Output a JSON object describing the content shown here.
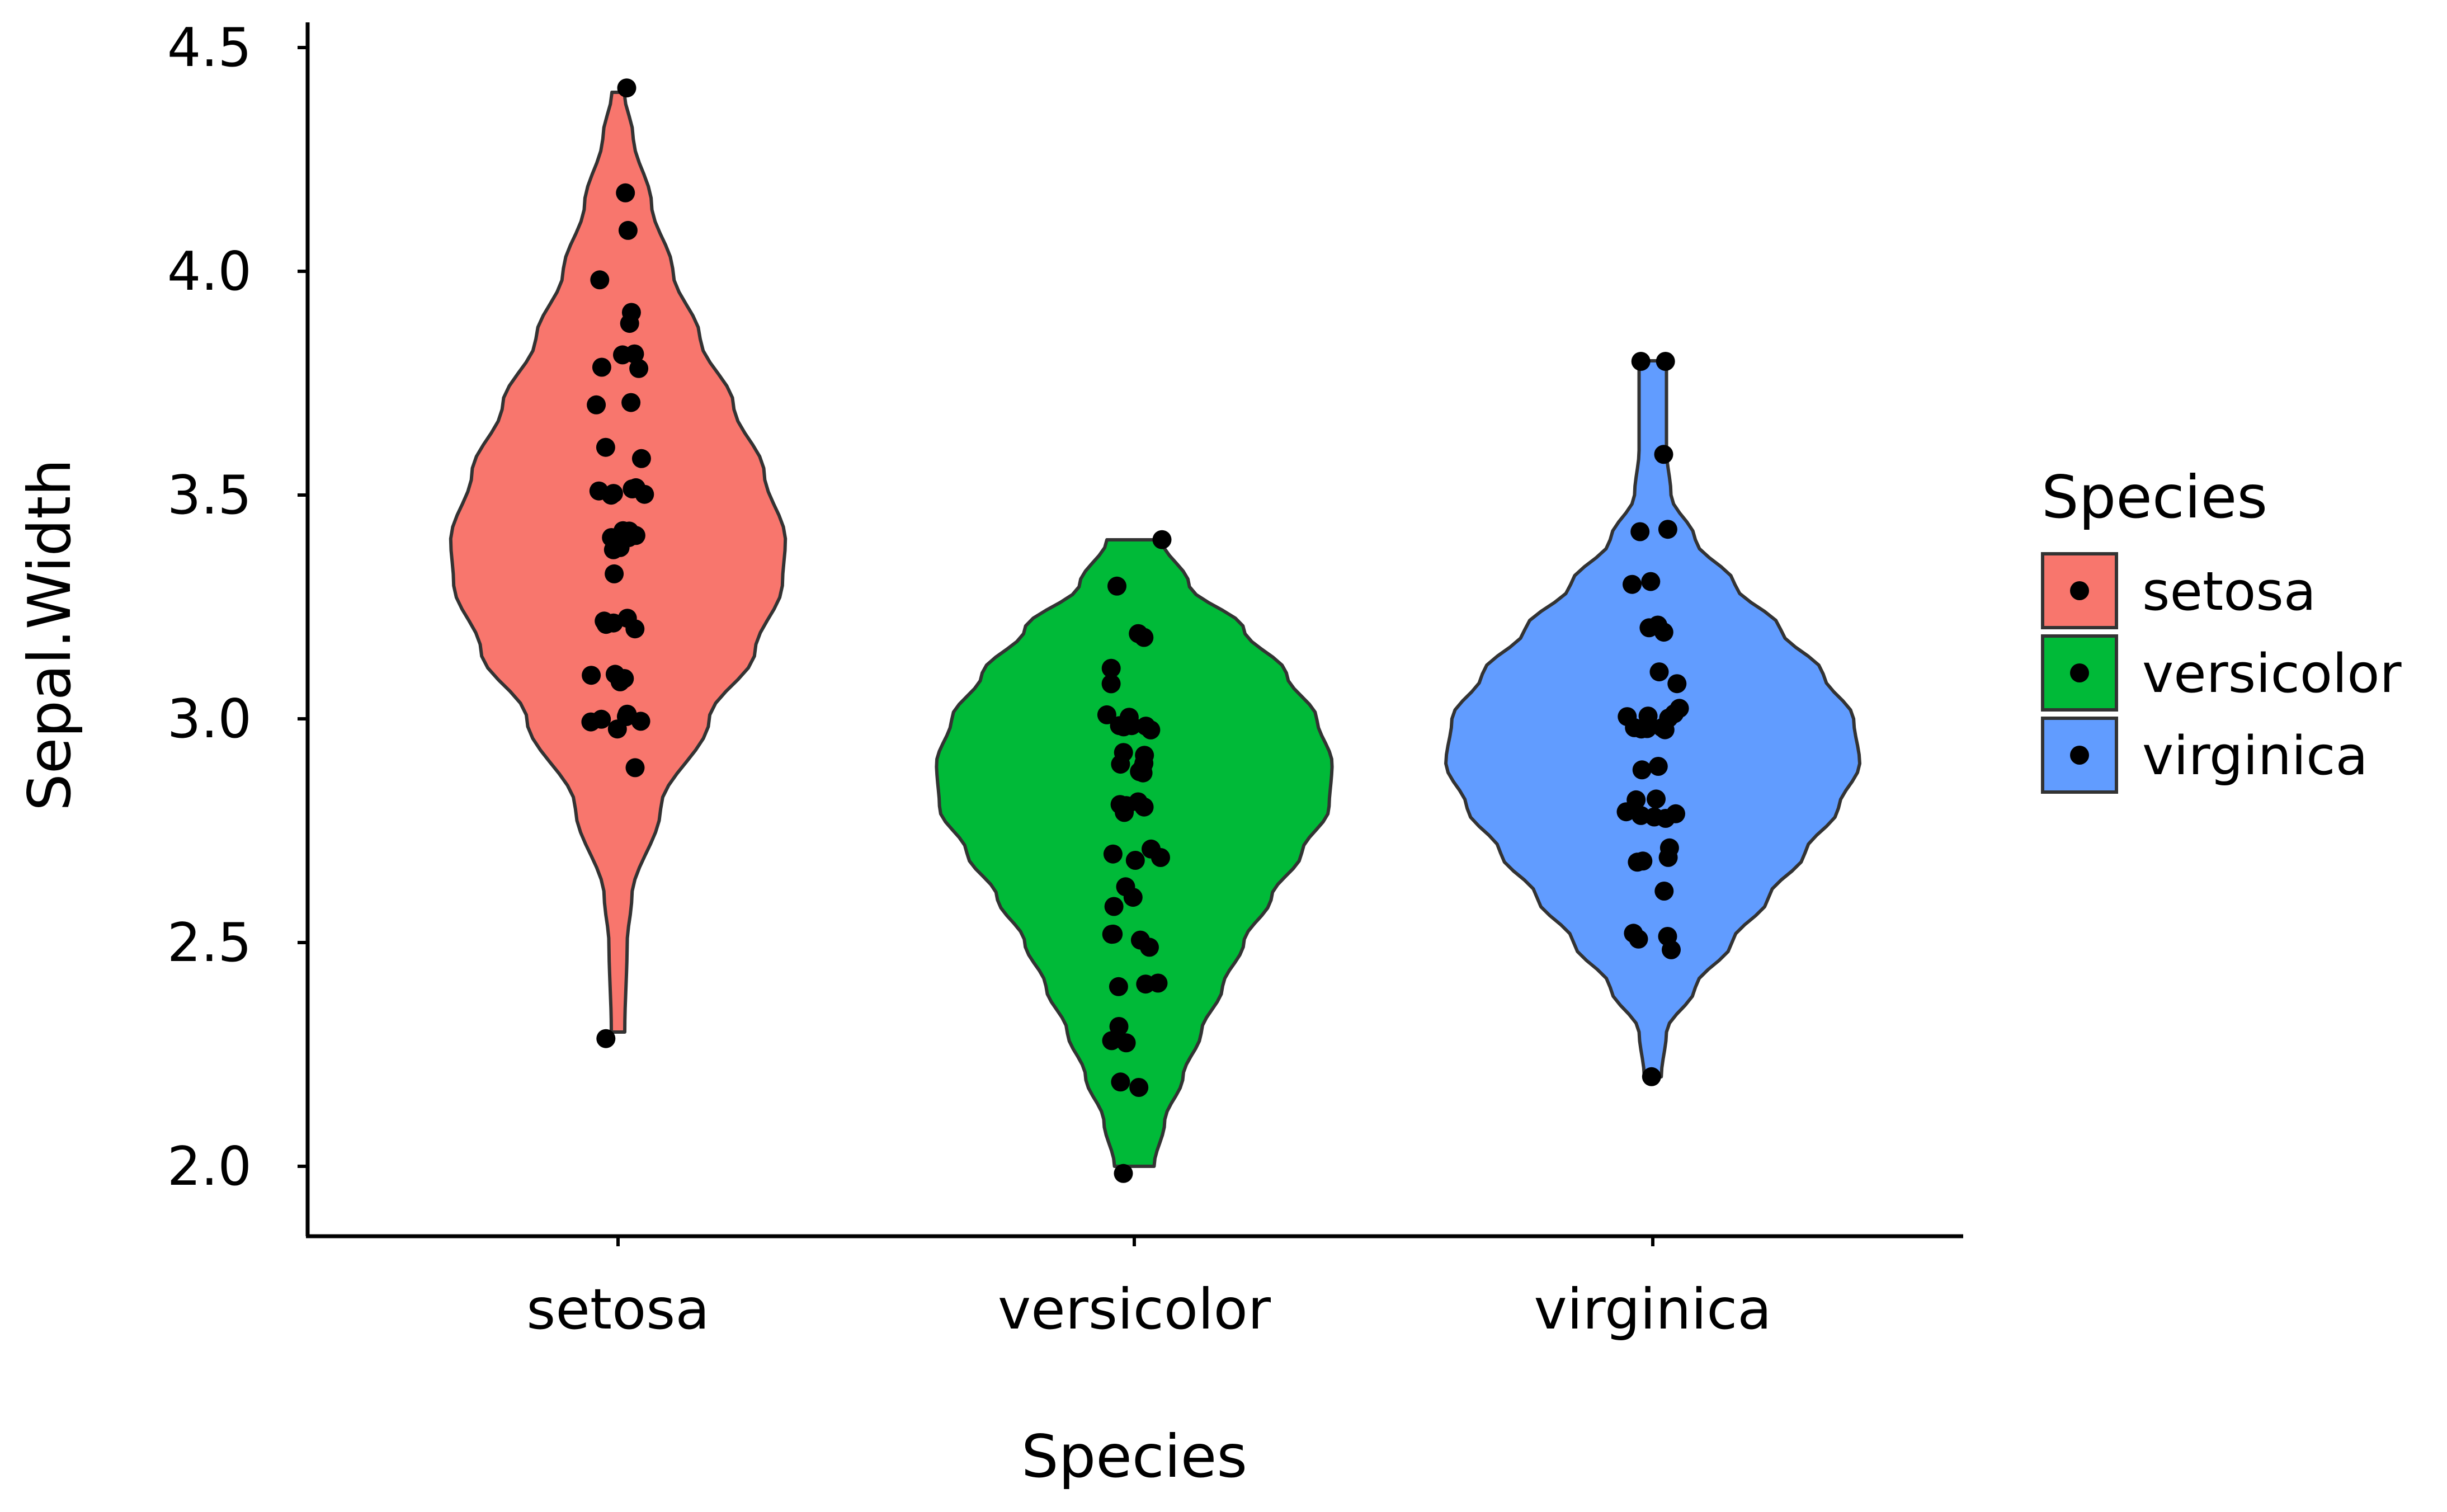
{
  "chart_data": {
    "type": "violin",
    "title": "",
    "xlabel": "Species",
    "ylabel": "Sepal.Width",
    "ylim": [
      1.84,
      4.56
    ],
    "yticks": [
      2.0,
      2.5,
      3.0,
      3.5,
      4.0,
      4.5
    ],
    "ytick_labels": [
      "2.0",
      "2.5",
      "3.0",
      "3.5",
      "4.0",
      "4.5"
    ],
    "categories": [
      "setosa",
      "versicolor",
      "virginica"
    ],
    "grid": false,
    "legend": {
      "title": "Species",
      "placement": "right",
      "entries": [
        "setosa",
        "versicolor",
        "virginica"
      ]
    },
    "series": [
      {
        "name": "setosa",
        "color": "#F8766D",
        "range": [
          2.3,
          4.4
        ],
        "density_profile": [
          [
            2.3,
            0.022
          ],
          [
            2.5,
            0.03
          ],
          [
            2.6,
            0.045
          ],
          [
            2.8,
            0.14
          ],
          [
            3.0,
            0.3
          ],
          [
            3.15,
            0.45
          ],
          [
            3.3,
            0.54
          ],
          [
            3.4,
            0.55
          ],
          [
            3.55,
            0.48
          ],
          [
            3.7,
            0.38
          ],
          [
            3.85,
            0.27
          ],
          [
            4.0,
            0.18
          ],
          [
            4.15,
            0.11
          ],
          [
            4.3,
            0.05
          ],
          [
            4.4,
            0.02
          ]
        ],
        "points": [
          4.4,
          4.2,
          4.1,
          4.0,
          3.9,
          3.9,
          3.8,
          3.8,
          3.8,
          3.8,
          3.7,
          3.7,
          3.6,
          3.6,
          3.5,
          3.5,
          3.5,
          3.5,
          3.5,
          3.5,
          3.4,
          3.4,
          3.4,
          3.4,
          3.4,
          3.4,
          3.4,
          3.4,
          3.4,
          3.3,
          3.2,
          3.2,
          3.2,
          3.2,
          3.2,
          3.1,
          3.1,
          3.1,
          3.1,
          3.0,
          3.0,
          3.0,
          3.0,
          3.0,
          3.0,
          2.9,
          2.3
        ]
      },
      {
        "name": "versicolor",
        "color": "#00BA38",
        "range": [
          2.0,
          3.4
        ],
        "density_profile": [
          [
            2.0,
            0.065
          ],
          [
            2.1,
            0.1
          ],
          [
            2.2,
            0.16
          ],
          [
            2.3,
            0.22
          ],
          [
            2.4,
            0.29
          ],
          [
            2.5,
            0.36
          ],
          [
            2.6,
            0.45
          ],
          [
            2.7,
            0.55
          ],
          [
            2.8,
            0.64
          ],
          [
            2.9,
            0.65
          ],
          [
            3.0,
            0.6
          ],
          [
            3.1,
            0.5
          ],
          [
            3.2,
            0.36
          ],
          [
            3.3,
            0.18
          ],
          [
            3.4,
            0.09
          ]
        ],
        "points": [
          3.4,
          3.3,
          3.2,
          3.2,
          3.1,
          3.1,
          3.0,
          3.0,
          3.0,
          3.0,
          3.0,
          3.0,
          3.0,
          2.9,
          2.9,
          2.9,
          2.9,
          2.9,
          2.9,
          2.9,
          2.8,
          2.8,
          2.8,
          2.8,
          2.8,
          2.7,
          2.7,
          2.7,
          2.7,
          2.6,
          2.6,
          2.6,
          2.5,
          2.5,
          2.5,
          2.5,
          2.4,
          2.4,
          2.4,
          2.3,
          2.3,
          2.3,
          2.2,
          2.2,
          2.0
        ]
      },
      {
        "name": "virginica",
        "color": "#619CFF",
        "range": [
          2.2,
          3.8
        ],
        "density_profile": [
          [
            2.2,
            0.028
          ],
          [
            2.3,
            0.045
          ],
          [
            2.4,
            0.14
          ],
          [
            2.5,
            0.26
          ],
          [
            2.6,
            0.38
          ],
          [
            2.7,
            0.5
          ],
          [
            2.8,
            0.61
          ],
          [
            2.9,
            0.68
          ],
          [
            3.0,
            0.66
          ],
          [
            3.1,
            0.56
          ],
          [
            3.2,
            0.42
          ],
          [
            3.3,
            0.27
          ],
          [
            3.4,
            0.14
          ],
          [
            3.5,
            0.06
          ],
          [
            3.6,
            0.045
          ],
          [
            3.7,
            0.045
          ],
          [
            3.8,
            0.045
          ]
        ],
        "points": [
          3.8,
          3.8,
          3.6,
          3.4,
          3.4,
          3.3,
          3.3,
          3.2,
          3.2,
          3.2,
          3.2,
          3.1,
          3.1,
          3.0,
          3.0,
          3.0,
          3.0,
          3.0,
          3.0,
          3.0,
          3.0,
          3.0,
          3.0,
          2.9,
          2.9,
          2.8,
          2.8,
          2.8,
          2.8,
          2.8,
          2.8,
          2.8,
          2.7,
          2.7,
          2.7,
          2.7,
          2.6,
          2.5,
          2.5,
          2.5,
          2.5,
          2.2
        ]
      }
    ]
  }
}
